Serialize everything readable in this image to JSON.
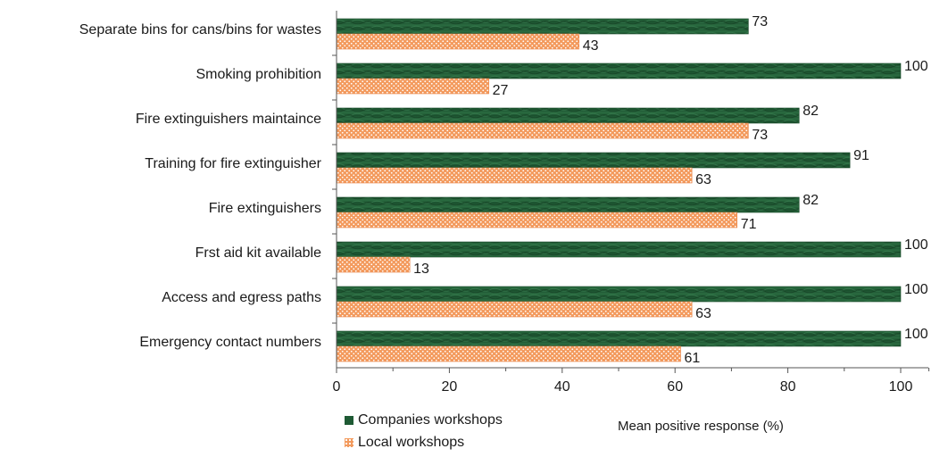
{
  "chart_data": {
    "type": "bar",
    "orientation": "horizontal",
    "categories": [
      "Separate bins for cans/bins for wastes",
      "Smoking prohibition",
      "Fire extinguishers maintaince",
      "Training for fire extinguisher",
      "Fire extinguishers",
      "Frst aid kit available",
      "Access and egress paths",
      "Emergency contact numbers"
    ],
    "series": [
      {
        "name": "Companies workshops",
        "values": [
          73,
          100,
          82,
          91,
          82,
          100,
          100,
          100
        ],
        "color": "#1e5a34"
      },
      {
        "name": "Local workshops",
        "values": [
          43,
          27,
          73,
          63,
          71,
          13,
          63,
          61
        ],
        "color": "#f39a5d"
      }
    ],
    "xlabel": "Mean positive response (%)",
    "xlim": [
      0,
      110
    ],
    "xticks": [
      0,
      20,
      40,
      60,
      80,
      100
    ],
    "grid": false,
    "legend_position": "bottom-left"
  }
}
